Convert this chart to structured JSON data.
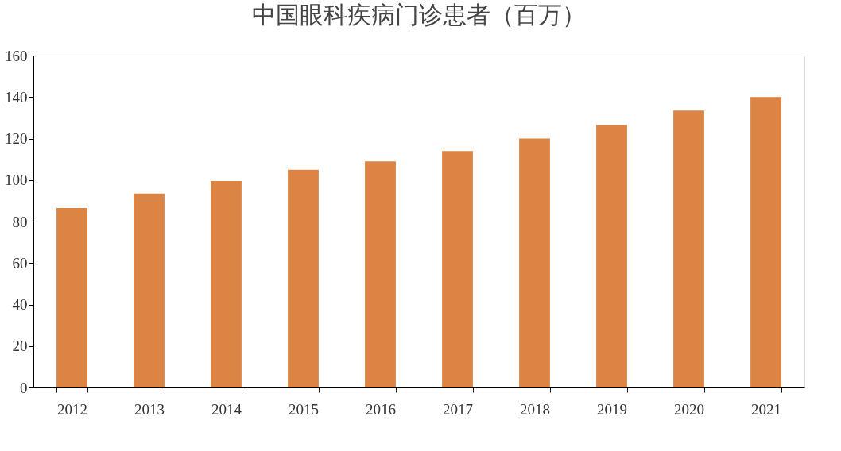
{
  "chart_data": {
    "type": "bar",
    "title": "中国眼科疾病门诊患者（百万）",
    "categories": [
      "2012",
      "2013",
      "2014",
      "2015",
      "2016",
      "2017",
      "2018",
      "2019",
      "2020",
      "2021"
    ],
    "values": [
      86.5,
      93.5,
      99.5,
      105,
      109,
      114,
      120,
      126.5,
      133.5,
      140
    ],
    "color": "#dc8444",
    "ylim": [
      0,
      160
    ],
    "yticks": [
      0,
      20,
      40,
      60,
      80,
      100,
      120,
      140,
      160
    ],
    "grid": false
  }
}
